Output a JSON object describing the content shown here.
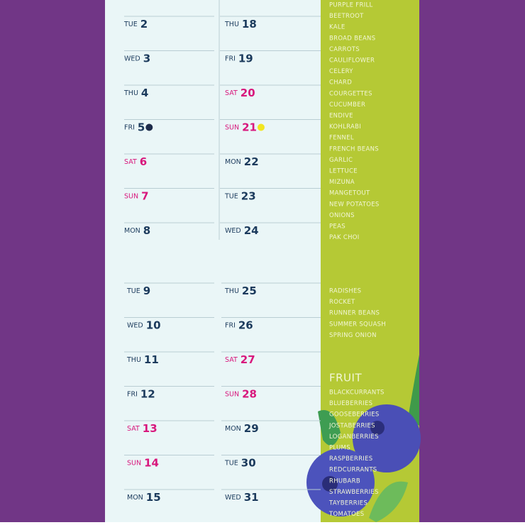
{
  "calendar": {
    "columns": [
      {
        "days": [
          {
            "dow": "TUE",
            "num": "2",
            "weekend": false
          },
          {
            "dow": "WED",
            "num": "3",
            "weekend": false
          },
          {
            "dow": "THU",
            "num": "4",
            "weekend": false
          },
          {
            "dow": "FRI",
            "num": "5",
            "weekend": false,
            "dot": "#1d2b4a"
          },
          {
            "dow": "SAT",
            "num": "6",
            "weekend": true
          },
          {
            "dow": "SUN",
            "num": "7",
            "weekend": true
          },
          {
            "dow": "MON",
            "num": "8",
            "weekend": false
          }
        ]
      },
      {
        "days": [
          {
            "dow": "THU",
            "num": "18",
            "weekend": false
          },
          {
            "dow": "FRI",
            "num": "19",
            "weekend": false
          },
          {
            "dow": "SAT",
            "num": "20",
            "weekend": true
          },
          {
            "dow": "SUN",
            "num": "21",
            "weekend": true,
            "dot": "#f2e620"
          },
          {
            "dow": "MON",
            "num": "22",
            "weekend": false
          },
          {
            "dow": "TUE",
            "num": "23",
            "weekend": false
          },
          {
            "dow": "WED",
            "num": "24",
            "weekend": false
          }
        ]
      },
      {
        "days": [
          {
            "dow": "TUE",
            "num": "9",
            "weekend": false
          },
          {
            "dow": "WED",
            "num": "10",
            "weekend": false
          },
          {
            "dow": "THU",
            "num": "11",
            "weekend": false
          },
          {
            "dow": "FRI",
            "num": "12",
            "weekend": false
          },
          {
            "dow": "SAT",
            "num": "13",
            "weekend": true
          },
          {
            "dow": "SUN",
            "num": "14",
            "weekend": true
          },
          {
            "dow": "MON",
            "num": "15",
            "weekend": false
          }
        ]
      },
      {
        "days": [
          {
            "dow": "THU",
            "num": "25",
            "weekend": false
          },
          {
            "dow": "FRI",
            "num": "26",
            "weekend": false
          },
          {
            "dow": "SAT",
            "num": "27",
            "weekend": true
          },
          {
            "dow": "SUN",
            "num": "28",
            "weekend": true
          },
          {
            "dow": "MON",
            "num": "29",
            "weekend": false
          },
          {
            "dow": "TUE",
            "num": "30",
            "weekend": false
          },
          {
            "dow": "WED",
            "num": "31",
            "weekend": false
          }
        ]
      }
    ]
  },
  "sidebar": {
    "vegetables": [
      "PURPLE FRILL",
      "BEETROOT",
      "KALE",
      "BROAD BEANS",
      "CARROTS",
      "CAULIFLOWER",
      "CELERY",
      "CHARD",
      "COURGETTES",
      "CUCUMBER",
      "ENDIVE",
      "KOHLRABI",
      "FENNEL",
      "FRENCH BEANS",
      "GARLIC",
      "LETTUCE",
      "MIZUNA",
      "MANGETOUT",
      "NEW POTATOES",
      "ONIONS",
      "PEAS",
      "PAK CHOI"
    ],
    "vegetables_more": [
      "RADISHES",
      "ROCKET",
      "RUNNER BEANS",
      "SUMMER SQUASH",
      "SPRING ONION"
    ],
    "fruit_heading": "FRUIT",
    "fruit": [
      "BLACKCURRANTS",
      "BLUEBERRIES",
      "GOOSEBERRIES",
      "JOSTABERRIES",
      "LOGANBERRIES",
      "PLUMS",
      "RASPBERRIES",
      "REDCURRANTS",
      "RHUBARB",
      "STRAWBERRIES",
      "TAYBERRIES",
      "TOMATOES"
    ]
  }
}
